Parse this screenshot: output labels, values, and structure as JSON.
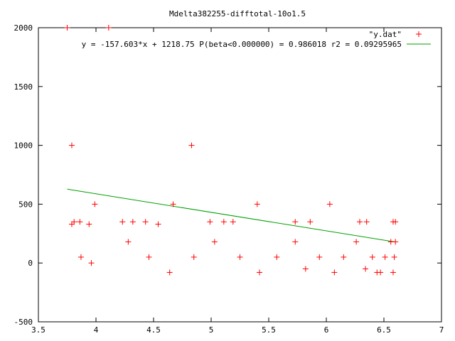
{
  "chart_data": {
    "type": "scatter",
    "title": "Mdelta382255-difftotal-10o1.5",
    "xlabel": "",
    "ylabel": "",
    "xlim": [
      3.5,
      7
    ],
    "ylim": [
      -500,
      2000
    ],
    "x_ticks": [
      3.5,
      4,
      4.5,
      5,
      5.5,
      6,
      6.5,
      7
    ],
    "x_tick_labels": [
      "3.5",
      "4",
      "4.5",
      "5",
      "5.5",
      "6",
      "6.5",
      "7"
    ],
    "y_ticks": [
      -500,
      0,
      500,
      1000,
      1500,
      2000
    ],
    "y_tick_labels": [
      "-500",
      "0",
      "500",
      "1000",
      "1500",
      "2000"
    ],
    "grid": false,
    "legend_position": "top-right",
    "series": [
      {
        "name": "\"y.dat\"",
        "kind": "points",
        "marker": "+",
        "color": "#ff0000",
        "x": [
          3.75,
          4.11,
          3.79,
          3.79,
          3.81,
          3.86,
          3.87,
          3.94,
          3.96,
          3.99,
          4.23,
          4.28,
          4.32,
          4.43,
          4.46,
          4.54,
          4.64,
          4.67,
          4.83,
          4.85,
          4.99,
          5.03,
          5.11,
          5.19,
          5.25,
          5.4,
          5.42,
          5.57,
          5.73,
          5.73,
          5.82,
          5.86,
          5.94,
          6.03,
          6.07,
          6.15,
          6.26,
          6.29,
          6.34,
          6.35,
          6.4,
          6.44,
          6.47,
          6.51,
          6.56,
          6.58,
          6.58,
          6.59,
          6.6,
          6.6
        ],
        "y": [
          2000,
          2000,
          1000,
          330,
          350,
          350,
          50,
          330,
          0,
          500,
          350,
          180,
          350,
          350,
          50,
          330,
          -80,
          500,
          1000,
          50,
          350,
          180,
          350,
          350,
          50,
          500,
          -80,
          50,
          180,
          350,
          -50,
          350,
          50,
          500,
          -80,
          50,
          180,
          350,
          -50,
          350,
          50,
          -80,
          -80,
          50,
          180,
          350,
          -80,
          50,
          180,
          350
        ]
      },
      {
        "name": "y = -157.603*x + 1218.75 P(beta<0.000000) = 0.986018 r2 = 0.09295965",
        "kind": "line",
        "color": "#00a000",
        "slope": -157.603,
        "intercept": 1218.75,
        "x_range": [
          3.75,
          6.6
        ]
      }
    ]
  }
}
